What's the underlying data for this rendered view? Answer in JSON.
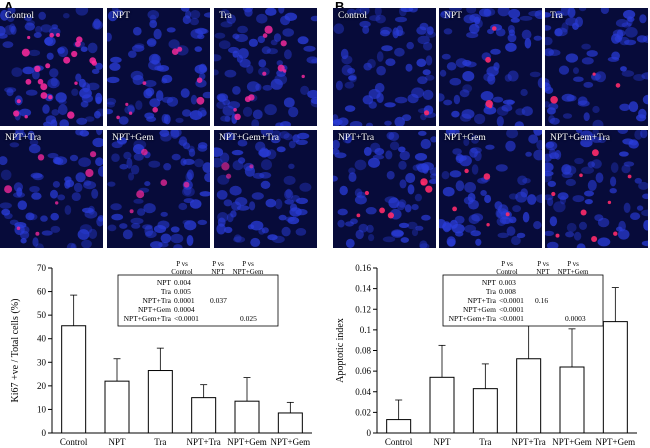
{
  "panels": [
    {
      "letter": "A",
      "tiles": [
        {
          "label": "Control",
          "nuclei_color": "#2a3cd8",
          "marker_color": "#ff2aa0",
          "marker_count": 22,
          "marker_opacity": 0.85
        },
        {
          "label": "NPT",
          "nuclei_color": "#2a3cd8",
          "marker_color": "#ff2aa0",
          "marker_count": 9,
          "marker_opacity": 0.8
        },
        {
          "label": "Tra",
          "nuclei_color": "#2a3cd8",
          "marker_color": "#ff2aa0",
          "marker_count": 11,
          "marker_opacity": 0.8
        },
        {
          "label": "NPT+Tra",
          "nuclei_color": "#2a3cd8",
          "marker_color": "#ff2aa0",
          "marker_count": 7,
          "marker_opacity": 0.75
        },
        {
          "label": "NPT+Gem",
          "nuclei_color": "#2a3cd8",
          "marker_color": "#ff2aa0",
          "marker_count": 5,
          "marker_opacity": 0.7
        },
        {
          "label": "NPT+Gem+Tra",
          "nuclei_color": "#2a3cd8",
          "marker_color": "#ff2aa0",
          "marker_count": 3,
          "marker_opacity": 0.6
        }
      ]
    },
    {
      "letter": "B",
      "tiles": [
        {
          "label": "Control",
          "nuclei_color": "#2a3cd8",
          "marker_color": "#ff2a6a",
          "marker_count": 1,
          "marker_opacity": 0.9
        },
        {
          "label": "NPT",
          "nuclei_color": "#2a3cd8",
          "marker_color": "#ff2a6a",
          "marker_count": 4,
          "marker_opacity": 0.9
        },
        {
          "label": "Tra",
          "nuclei_color": "#2a3cd8",
          "marker_color": "#ff2a6a",
          "marker_count": 3,
          "marker_opacity": 0.9
        },
        {
          "label": "NPT+Tra",
          "nuclei_color": "#2a3cd8",
          "marker_color": "#ff2a6a",
          "marker_count": 7,
          "marker_opacity": 0.9
        },
        {
          "label": "NPT+Gem",
          "nuclei_color": "#2a3cd8",
          "marker_color": "#ff2a6a",
          "marker_count": 5,
          "marker_opacity": 0.9
        },
        {
          "label": "NPT+Gem+Tra",
          "nuclei_color": "#2a3cd8",
          "marker_color": "#ff2a6a",
          "marker_count": 9,
          "marker_opacity": 0.9
        }
      ]
    }
  ],
  "chart_data": [
    {
      "type": "bar",
      "categories": [
        [
          "Control"
        ],
        [
          "NPT"
        ],
        [
          "Tra"
        ],
        [
          "NPT+Tra"
        ],
        [
          "NPT+Gem"
        ],
        [
          "NPT+Gem",
          "+Tra"
        ]
      ],
      "values": [
        45.5,
        22,
        26.5,
        15,
        13.5,
        8.5
      ],
      "errors": [
        13,
        9.5,
        9.5,
        5.5,
        10,
        4.5
      ],
      "ylabel": "Ki67 +ve / Total cells (%)",
      "ylim": [
        0,
        70
      ],
      "yticks": [
        0,
        10,
        20,
        30,
        40,
        50,
        60,
        70
      ],
      "pvalue_table": {
        "headers": [
          [
            "P vs",
            "Control"
          ],
          [
            "P vs",
            "NPT"
          ],
          [
            "P vs",
            "NPT+Gem"
          ]
        ],
        "rows": [
          {
            "label": "NPT",
            "values": [
              "0.004",
              "",
              ""
            ]
          },
          {
            "label": "Tra",
            "values": [
              "0.005",
              "",
              ""
            ]
          },
          {
            "label": "NPT+Tra",
            "values": [
              "0.0001",
              "0.037",
              ""
            ]
          },
          {
            "label": "NPT+Gem",
            "values": [
              "0.0004",
              "",
              ""
            ]
          },
          {
            "label": "NPT+Gem+Tra",
            "values": [
              "<0.0001",
              "",
              "0.025"
            ]
          }
        ]
      }
    },
    {
      "type": "bar",
      "categories": [
        [
          "Control"
        ],
        [
          "NPT"
        ],
        [
          "Tra"
        ],
        [
          "NPT+Tra"
        ],
        [
          "NPT+Gem"
        ],
        [
          "NPT+Gem",
          "+Tra"
        ]
      ],
      "values": [
        0.013,
        0.054,
        0.043,
        0.072,
        0.064,
        0.108
      ],
      "errors": [
        0.019,
        0.031,
        0.024,
        0.037,
        0.037,
        0.033
      ],
      "ylabel": "Apoptotic index",
      "ylim": [
        0,
        0.16
      ],
      "yticks": [
        0,
        0.02,
        0.04,
        0.06,
        0.08,
        0.1,
        0.12,
        0.14,
        0.16
      ],
      "pvalue_table": {
        "headers": [
          [
            "P vs",
            "Control"
          ],
          [
            "P vs",
            "NPT"
          ],
          [
            "P vs",
            "NPT+Gem"
          ]
        ],
        "rows": [
          {
            "label": "NPT",
            "values": [
              "0.003",
              "",
              ""
            ]
          },
          {
            "label": "Tra",
            "values": [
              "0.008",
              "",
              ""
            ]
          },
          {
            "label": "NPT+Tra",
            "values": [
              "<0.0001",
              "0.16",
              ""
            ]
          },
          {
            "label": "NPT+Gem",
            "values": [
              "<0.0001",
              "",
              ""
            ]
          },
          {
            "label": "NPT+Gem+Tra",
            "values": [
              "<0.0001",
              "",
              "0.0003"
            ]
          }
        ]
      }
    }
  ]
}
